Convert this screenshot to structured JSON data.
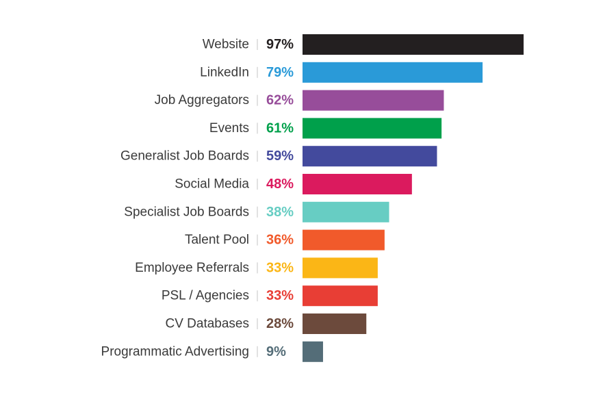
{
  "chart_data": {
    "type": "bar",
    "orientation": "horizontal",
    "title": "",
    "xlabel": "",
    "ylabel": "",
    "xlim": [
      0,
      100
    ],
    "grid": false,
    "categories": [
      "Website",
      "LinkedIn",
      "Job Aggregators",
      "Events",
      "Generalist Job Boards",
      "Social Media",
      "Specialist Job Boards",
      "Talent Pool",
      "Employee Referrals",
      "PSL / Agencies",
      "CV Databases",
      "Programmatic Advertising"
    ],
    "values": [
      97,
      79,
      62,
      61,
      59,
      48,
      38,
      36,
      33,
      33,
      28,
      9
    ],
    "value_labels": [
      "97%",
      "79%",
      "62%",
      "61%",
      "59%",
      "48%",
      "38%",
      "36%",
      "33%",
      "33%",
      "28%",
      "9%"
    ],
    "colors": [
      "#231f20",
      "#2a9ad8",
      "#974d9a",
      "#00a04b",
      "#434a9d",
      "#db1a5e",
      "#67cdc3",
      "#f15a2b",
      "#fbb616",
      "#e83e35",
      "#6c4a3c",
      "#546d78"
    ]
  }
}
